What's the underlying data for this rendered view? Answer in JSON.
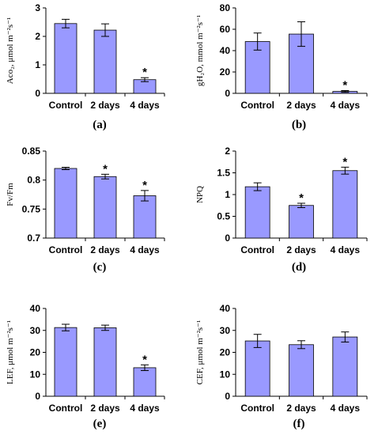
{
  "chart_data": [
    {
      "type": "bar",
      "panel_label": "(a)",
      "ylabel": "Aco₂, μmol m⁻²s⁻¹",
      "categories": [
        "Control",
        "2 days",
        "4 days"
      ],
      "values": [
        2.45,
        2.22,
        0.48
      ],
      "errors": [
        0.15,
        0.22,
        0.07
      ],
      "significant": [
        false,
        false,
        true
      ],
      "ylim": [
        0,
        3
      ],
      "yticks": [
        "0",
        "1",
        "2",
        "3"
      ],
      "sig_marker": "*"
    },
    {
      "type": "bar",
      "panel_label": "(b)",
      "ylabel": "gH₂O, mmol m⁻²s⁻¹",
      "categories": [
        "Control",
        "2 days",
        "4 days"
      ],
      "values": [
        48.5,
        55.5,
        1.8
      ],
      "errors": [
        8.0,
        11.5,
        0.8
      ],
      "significant": [
        false,
        false,
        true
      ],
      "ylim": [
        0,
        80
      ],
      "yticks": [
        "0",
        "20",
        "40",
        "60",
        "80"
      ],
      "sig_marker": "*"
    },
    {
      "type": "bar",
      "panel_label": "(c)",
      "ylabel": "Fv/Fm",
      "categories": [
        "Control",
        "2 days",
        "4 days"
      ],
      "values": [
        0.82,
        0.806,
        0.773
      ],
      "errors": [
        0.002,
        0.004,
        0.009
      ],
      "significant": [
        false,
        true,
        true
      ],
      "ylim": [
        0.7,
        0.85
      ],
      "yticks": [
        "0.7",
        "0.75",
        "0.8",
        "0.85"
      ],
      "sig_marker": "*"
    },
    {
      "type": "bar",
      "panel_label": "(d)",
      "ylabel": "NPQ",
      "categories": [
        "Control",
        "2 days",
        "4 days"
      ],
      "values": [
        1.18,
        0.75,
        1.55
      ],
      "errors": [
        0.09,
        0.05,
        0.08
      ],
      "significant": [
        false,
        true,
        true
      ],
      "ylim": [
        0,
        2
      ],
      "yticks": [
        "0",
        "0.5",
        "1",
        "1.5",
        "2"
      ],
      "sig_marker": "*"
    },
    {
      "type": "bar",
      "panel_label": "(e)",
      "ylabel": "LEF, μmol m⁻²s⁻¹",
      "categories": [
        "Control",
        "2 days",
        "4 days"
      ],
      "values": [
        31.3,
        31.2,
        13.0
      ],
      "errors": [
        1.5,
        1.2,
        1.3
      ],
      "significant": [
        false,
        false,
        true
      ],
      "ylim": [
        0,
        40
      ],
      "yticks": [
        "0",
        "10",
        "20",
        "30",
        "40"
      ],
      "sig_marker": "*"
    },
    {
      "type": "bar",
      "panel_label": "(f)",
      "ylabel": "CEF, μmol m⁻²s⁻¹",
      "categories": [
        "Control",
        "2 days",
        "4 days"
      ],
      "values": [
        25.2,
        23.5,
        27.0
      ],
      "errors": [
        3.0,
        1.8,
        2.3
      ],
      "significant": [
        false,
        false,
        false
      ],
      "ylim": [
        0,
        40
      ],
      "yticks": [
        "0",
        "10",
        "20",
        "30",
        "40"
      ],
      "sig_marker": "*"
    }
  ]
}
